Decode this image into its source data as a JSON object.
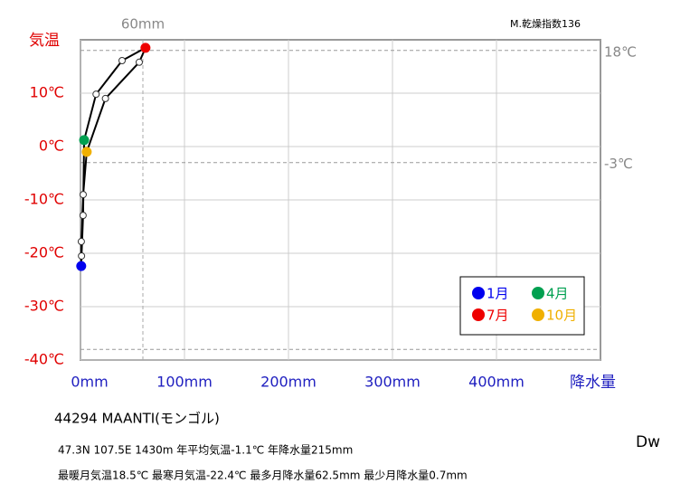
{
  "chart_data": {
    "type": "line",
    "x": [
      0.7,
      1,
      2.5,
      3.5,
      15,
      40,
      62.5,
      56.5,
      24,
      6,
      2.6,
      0.8
    ],
    "series": [
      {
        "name": "気温",
        "color": "#000000",
        "values": [
          -22.4,
          -20.5,
          -12.9,
          1.2,
          9.8,
          16.1,
          18.5,
          15.8,
          9,
          -1,
          -9,
          -17.8
        ],
        "point_colors": [
          "#0000ee",
          "#ffffff",
          "#ffffff",
          "#00a050",
          "#ffffff",
          "#ffffff",
          "#ee0000",
          "#ffffff",
          "#ffffff",
          "#f0b000",
          "#ffffff",
          "#ffffff"
        ]
      }
    ],
    "legend": [
      {
        "label": "1月",
        "color": "#0000ee"
      },
      {
        "label": "4月",
        "color": "#00a050"
      },
      {
        "label": "7月",
        "color": "#ee0000"
      },
      {
        "label": "10月",
        "color": "#f0b000"
      }
    ],
    "xlim": [
      0,
      500
    ],
    "ylim": [
      -40,
      20
    ],
    "xticks": [
      {
        "value": 0,
        "label": "0mm"
      },
      {
        "value": 100,
        "label": "100mm"
      },
      {
        "value": 200,
        "label": "200mm"
      },
      {
        "value": 300,
        "label": "300mm"
      },
      {
        "value": 400,
        "label": "400mm"
      }
    ],
    "yticks": [
      {
        "value": 10,
        "label": "10℃"
      },
      {
        "value": 0,
        "label": "0℃"
      },
      {
        "value": -10,
        "label": "-10℃"
      },
      {
        "value": -20,
        "label": "-20℃"
      },
      {
        "value": -30,
        "label": "-30℃"
      },
      {
        "value": -40,
        "label": "-40℃"
      }
    ],
    "y_label": "気温",
    "x_label": "降水量",
    "grid": true,
    "vref": [
      {
        "value": 60,
        "label": "60mm"
      }
    ],
    "href": [
      {
        "value": 18,
        "label": "18℃"
      },
      {
        "value": -3,
        "label": "-3℃"
      },
      {
        "value": -38
      }
    ],
    "annotation": "M.乾燥指数136",
    "station": "44294  MAANTI(モンゴル)",
    "info1": "47.3N  107.5E 1430m  年平均気温-1.1℃ 年降水量215mm",
    "info2": "最暖月気温18.5℃ 最寒月気温-22.4℃ 最多月降水量62.5mm 最少月降水量0.7mm",
    "climate": "Dw"
  }
}
